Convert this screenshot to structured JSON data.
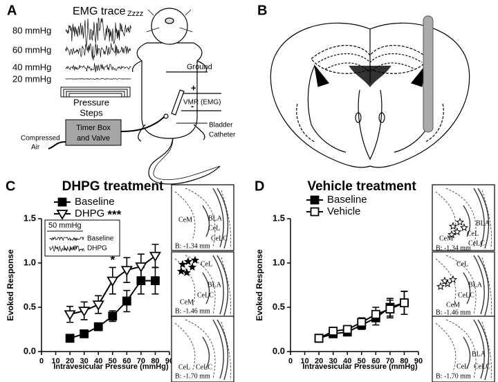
{
  "panel_a": {
    "letter": "A",
    "emg_title": "EMG trace",
    "pressures": [
      "80 mmHg",
      "60 mmHg",
      "40 mmHg",
      "20 mmHg"
    ],
    "pressure_steps": [
      "Pressure",
      "Steps"
    ],
    "sleep": "Zzzz",
    "ground": "Ground",
    "plus": "+",
    "minus": "-",
    "vmr": "VMR (EMG)",
    "timer": [
      "Timer Box",
      "and Valve"
    ],
    "air": [
      "Compressed",
      "Air"
    ],
    "catheter": [
      "Bladder",
      "Catheter"
    ]
  },
  "panel_b": {
    "letter": "B"
  },
  "chart_data": [
    {
      "type": "line",
      "letter": "C",
      "title": "DHPG treatment",
      "xlabel": "Intravesicular Pressure (mmHg)",
      "ylabel": "Evoked Response",
      "xlim": [
        0,
        90
      ],
      "xticks": [
        0,
        10,
        20,
        30,
        40,
        50,
        60,
        70,
        80,
        90
      ],
      "ylim": [
        0,
        1.5
      ],
      "yticks": [
        {
          "value": 0,
          "label": "0.0"
        },
        0.5,
        {
          "value": 1,
          "label": "1.0"
        },
        1.5
      ],
      "series": [
        {
          "name": "Baseline",
          "color": "#000000",
          "marker": "square",
          "x": [
            20,
            30,
            40,
            50,
            60,
            70,
            80
          ],
          "values": [
            0.15,
            0.2,
            0.28,
            0.4,
            0.57,
            0.8,
            0.8
          ],
          "errors": [
            0.02,
            0.03,
            0.04,
            0.06,
            0.12,
            0.15,
            0.15
          ]
        },
        {
          "name": "DHPG",
          "significance": "***",
          "color": "#000000",
          "marker": "triangle-open",
          "x": [
            20,
            30,
            40,
            50,
            60,
            70,
            80
          ],
          "values": [
            0.42,
            0.46,
            0.53,
            0.8,
            0.92,
            0.96,
            1.08
          ],
          "errors": [
            0.09,
            0.1,
            0.1,
            0.15,
            0.14,
            0.14,
            0.13
          ]
        }
      ],
      "annotations": [
        {
          "text": "*",
          "x": 50
        }
      ],
      "inset": {
        "scale": "50 mmHg",
        "labels": [
          "Baseline",
          "DHPG"
        ]
      }
    },
    {
      "type": "line",
      "letter": "D",
      "title": "Vehicle treatment",
      "xlabel": "Intravesicular Pressure (mmHg)",
      "ylabel": "Evoked Response",
      "xlim": [
        0,
        90
      ],
      "xticks": [
        0,
        10,
        20,
        30,
        40,
        50,
        60,
        70,
        80,
        90
      ],
      "ylim": [
        0,
        1.5
      ],
      "yticks": [
        {
          "value": 0,
          "label": "0.0"
        },
        0.5,
        {
          "value": 1,
          "label": "1.0"
        },
        1.5
      ],
      "series": [
        {
          "name": "Baseline",
          "color": "#000000",
          "marker": "square",
          "x": [
            20,
            30,
            40,
            50,
            60,
            70,
            80
          ],
          "values": [
            0.15,
            0.2,
            0.22,
            0.3,
            0.38,
            0.5,
            0.55
          ],
          "errors": [
            0.02,
            0.03,
            0.03,
            0.05,
            0.08,
            0.1,
            0.13
          ]
        },
        {
          "name": "Vehicle",
          "color": "#000000",
          "marker": "square-open",
          "x": [
            20,
            30,
            40,
            50,
            60,
            70,
            80
          ],
          "values": [
            0.15,
            0.23,
            0.25,
            0.33,
            0.42,
            0.48,
            0.55
          ],
          "errors": [
            0.02,
            0.04,
            0.04,
            0.05,
            0.08,
            0.1,
            0.13
          ]
        }
      ]
    }
  ],
  "sections": [
    {
      "labels": [
        "BLA",
        "CeL",
        "CeLC",
        "CeM",
        "B: -1.34 mm"
      ]
    },
    {
      "labels": [
        "CeL",
        "BLA",
        "CeLC",
        "CeM",
        "B: -1.46 mm"
      ]
    },
    {
      "labels": [
        "CeL",
        "CeLC",
        "B: -1.70 mm"
      ]
    },
    {
      "labels": [
        "CeM",
        "BLA",
        "CeL",
        "CeLC",
        "B: -1.34 mm"
      ]
    },
    {
      "labels": [
        "CeL",
        "BLA",
        "CeLC",
        "CeM",
        "B: -1.46 mm"
      ]
    },
    {
      "labels": [
        "BLA",
        "CeL",
        "CeLC",
        "B: -1.70 mm"
      ]
    }
  ]
}
